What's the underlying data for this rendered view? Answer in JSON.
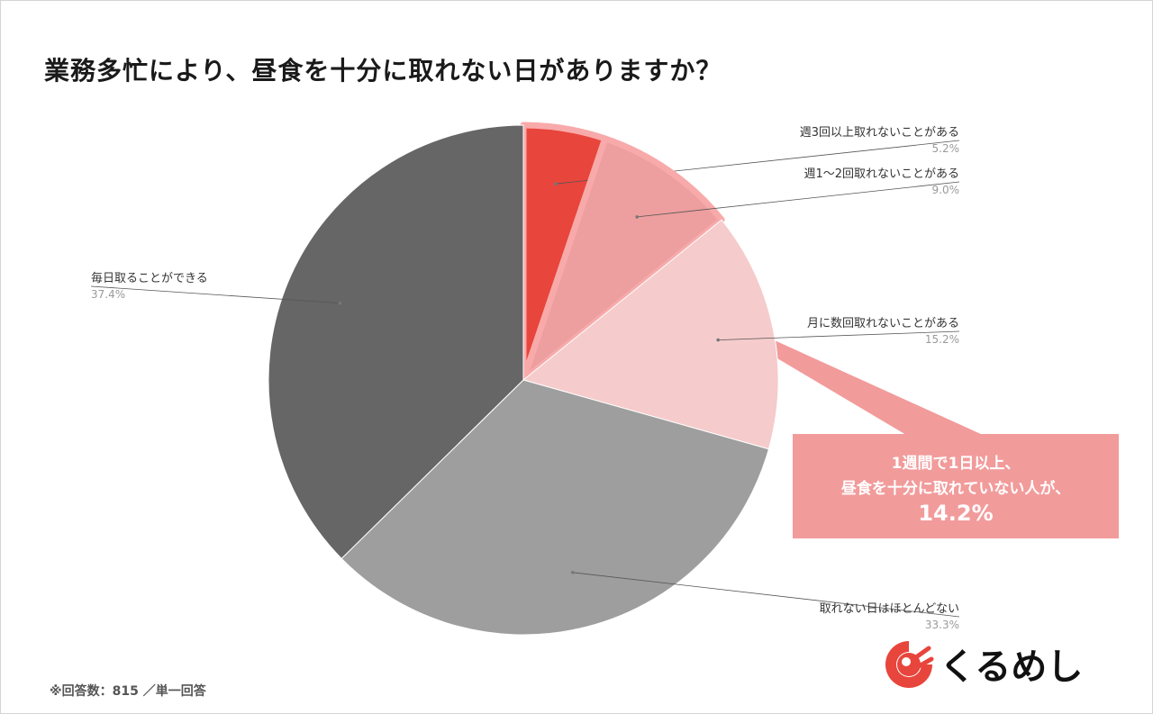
{
  "title": "業務多忙により、昼食を十分に取れない日がありますか？",
  "chart_data": {
    "type": "pie",
    "title": "業務多忙により、昼食を十分に取れない日がありますか？",
    "start_angle_deg": 0,
    "direction": "clockwise",
    "slices": [
      {
        "label": "週3回以上取れないことがある",
        "value": 5.2,
        "value_label": "5.2%",
        "color": "#e8453c",
        "highlight": true
      },
      {
        "label": "週1〜2回取れないことがある",
        "value": 9.0,
        "value_label": "9.0%",
        "color": "#ed9e9e",
        "highlight": true
      },
      {
        "label": "月に数回取れないことがある",
        "value": 15.2,
        "value_label": "15.2%",
        "color": "#f5cbcb",
        "highlight": false
      },
      {
        "label": "取れない日はほとんどない",
        "value": 33.3,
        "value_label": "33.3%",
        "color": "#9e9e9e",
        "highlight": false
      },
      {
        "label": "毎日取ることができる",
        "value": 37.4,
        "value_label": "37.4%",
        "color": "#666666",
        "highlight": false
      }
    ],
    "callout": {
      "line1": "1週間で1日以上、",
      "line2": "昼食を十分に取れていない人が、",
      "value": "14.2%",
      "color": "#f29b9b"
    }
  },
  "footnote": "※回答数：815 ／単一回答",
  "logo": {
    "text": "くるめし",
    "icon": "kurumeshi-logo-icon",
    "color": "#e8453c"
  }
}
